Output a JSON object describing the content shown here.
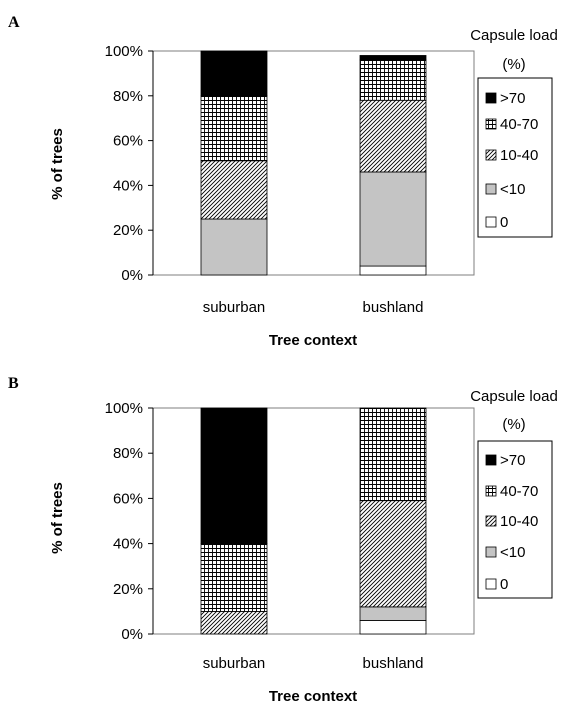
{
  "colors": {
    "black_fill": "#000000",
    "gray_fill": "#c4c4c4",
    "white_fill": "#ffffff",
    "pattern_stroke": "#000000"
  },
  "chart_data": [
    {
      "panel_label": "A",
      "type": "bar",
      "stacked": true,
      "normalized": true,
      "categories": [
        "suburban",
        "bushland"
      ],
      "series": [
        {
          "name": "0",
          "pattern": "white",
          "values": [
            0,
            4
          ]
        },
        {
          "name": "<10",
          "pattern": "gray",
          "values": [
            25,
            42
          ]
        },
        {
          "name": "10-40",
          "pattern": "diagonal",
          "values": [
            26,
            32
          ]
        },
        {
          "name": "40-70",
          "pattern": "grid",
          "values": [
            29,
            18
          ]
        },
        {
          "name": ">70",
          "pattern": "solid-black",
          "values": [
            20,
            2
          ]
        }
      ],
      "xlabel": "Tree context",
      "ylabel": "% of trees",
      "ylim": [
        0,
        100
      ],
      "yticks": [
        "0%",
        "20%",
        "40%",
        "60%",
        "80%",
        "100%"
      ],
      "legend": {
        "title_line1": "Capsule load",
        "title_line2": "(%)",
        "placement": "right",
        "order": [
          ">70",
          "40-70",
          "10-40",
          "<10",
          "0"
        ]
      },
      "grid": false
    },
    {
      "panel_label": "B",
      "type": "bar",
      "stacked": true,
      "normalized": true,
      "categories": [
        "suburban",
        "bushland"
      ],
      "series": [
        {
          "name": "0",
          "pattern": "white",
          "values": [
            0,
            6
          ]
        },
        {
          "name": "<10",
          "pattern": "gray",
          "values": [
            0,
            6
          ]
        },
        {
          "name": "10-40",
          "pattern": "diagonal",
          "values": [
            10,
            47
          ]
        },
        {
          "name": "40-70",
          "pattern": "grid",
          "values": [
            30,
            41
          ]
        },
        {
          "name": ">70",
          "pattern": "solid-black",
          "values": [
            60,
            0
          ]
        }
      ],
      "xlabel": "Tree context",
      "ylabel": "% of trees",
      "ylim": [
        0,
        100
      ],
      "yticks": [
        "0%",
        "20%",
        "40%",
        "60%",
        "80%",
        "100%"
      ],
      "legend": {
        "title_line1": "Capsule load",
        "title_line2": "(%)",
        "placement": "right",
        "order": [
          ">70",
          "40-70",
          "10-40",
          "<10",
          "0"
        ]
      },
      "grid": false
    }
  ]
}
